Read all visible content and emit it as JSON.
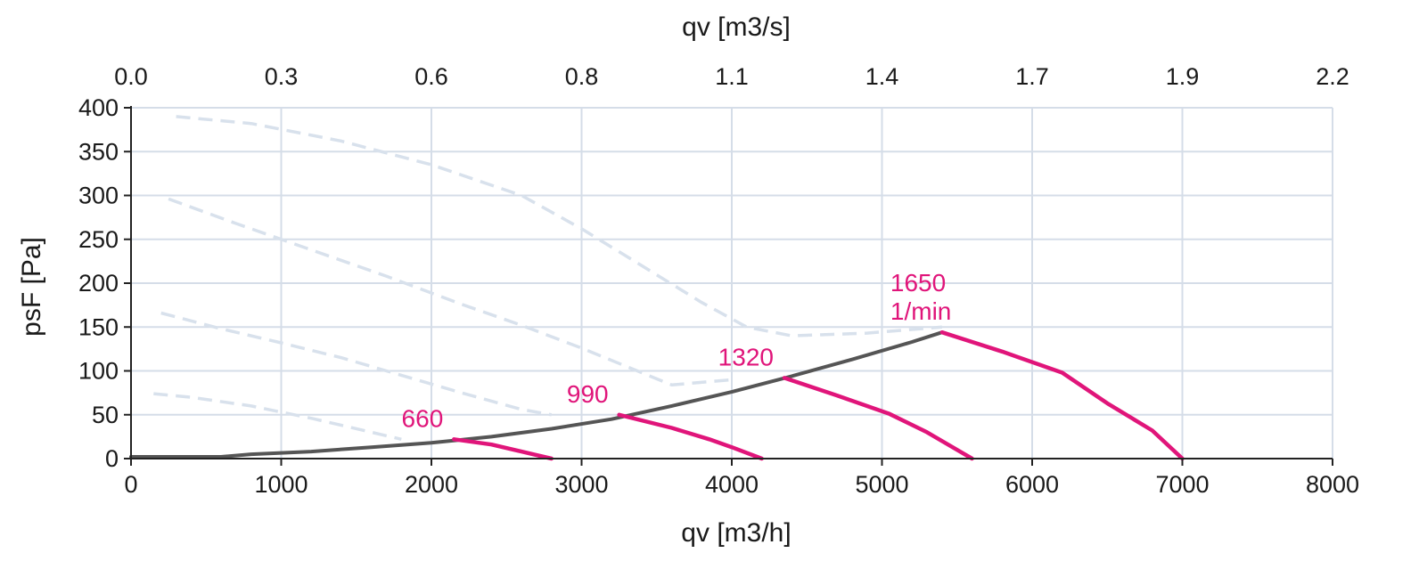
{
  "chart_data": {
    "type": "line",
    "x_label_top": "qv [m3/s]",
    "x_label_bottom": "qv [m3/h]",
    "y_label": "psF [Pa]",
    "x_range": [
      0,
      8000
    ],
    "y_range": [
      0,
      400
    ],
    "x_ticks_bottom": [
      "0",
      "1000",
      "2000",
      "3000",
      "4000",
      "5000",
      "6000",
      "7000",
      "8000"
    ],
    "x_ticks_top": [
      "0.0",
      "0.3",
      "0.6",
      "0.8",
      "1.1",
      "1.4",
      "1.7",
      "1.9",
      "2.2"
    ],
    "y_ticks": [
      "0",
      "50",
      "100",
      "150",
      "200",
      "250",
      "300",
      "350",
      "400"
    ],
    "grid": true,
    "colors": {
      "operating": "#e0157a",
      "system_curve": "#555555",
      "faded": "#d8e1ec",
      "grid": "#d5dde8"
    },
    "operating_series": [
      {
        "label": "660",
        "label_lines": [
          "660"
        ],
        "points": [
          [
            2150,
            22
          ],
          [
            2400,
            16
          ],
          [
            2600,
            8
          ],
          [
            2800,
            0
          ]
        ]
      },
      {
        "label": "990",
        "label_lines": [
          "990"
        ],
        "points": [
          [
            3250,
            50
          ],
          [
            3600,
            35
          ],
          [
            3850,
            22
          ],
          [
            4000,
            13
          ],
          [
            4200,
            0
          ]
        ]
      },
      {
        "label": "1320",
        "label_lines": [
          "1320"
        ],
        "points": [
          [
            4350,
            92
          ],
          [
            4700,
            72
          ],
          [
            5050,
            51
          ],
          [
            5300,
            30
          ],
          [
            5600,
            0
          ]
        ]
      },
      {
        "label": "1650 1/min",
        "label_lines": [
          "1650",
          "1/min"
        ],
        "points": [
          [
            5400,
            144
          ],
          [
            5800,
            122
          ],
          [
            6200,
            98
          ],
          [
            6500,
            63
          ],
          [
            6800,
            32
          ],
          [
            7000,
            0
          ]
        ]
      }
    ],
    "system_curve": [
      [
        0,
        2
      ],
      [
        600,
        2
      ],
      [
        800,
        5
      ],
      [
        1200,
        8
      ],
      [
        1600,
        13
      ],
      [
        2000,
        18
      ],
      [
        2400,
        25
      ],
      [
        2800,
        34
      ],
      [
        3200,
        45
      ],
      [
        3600,
        60
      ],
      [
        4000,
        76
      ],
      [
        4400,
        94
      ],
      [
        4800,
        113
      ],
      [
        5200,
        133
      ],
      [
        5400,
        144
      ]
    ],
    "faded_curves": [
      {
        "points": [
          [
            150,
            74
          ],
          [
            400,
            70
          ],
          [
            800,
            60
          ],
          [
            1200,
            46
          ],
          [
            1600,
            30
          ],
          [
            1800,
            22
          ]
        ]
      },
      {
        "points": [
          [
            200,
            166
          ],
          [
            600,
            148
          ],
          [
            1000,
            132
          ],
          [
            1400,
            115
          ],
          [
            1800,
            95
          ],
          [
            2200,
            75
          ],
          [
            2600,
            56
          ],
          [
            2800,
            50
          ]
        ]
      },
      {
        "points": [
          [
            250,
            296
          ],
          [
            700,
            268
          ],
          [
            1200,
            238
          ],
          [
            1700,
            208
          ],
          [
            2200,
            176
          ],
          [
            2600,
            152
          ],
          [
            3000,
            126
          ],
          [
            3300,
            105
          ],
          [
            3600,
            84
          ],
          [
            4000,
            90
          ]
        ]
      },
      {
        "points": [
          [
            300,
            390
          ],
          [
            800,
            382
          ],
          [
            1400,
            362
          ],
          [
            2000,
            335
          ],
          [
            2600,
            300
          ],
          [
            3000,
            262
          ],
          [
            3400,
            220
          ],
          [
            3800,
            178
          ],
          [
            4100,
            150
          ],
          [
            4400,
            140
          ],
          [
            4900,
            143
          ],
          [
            5400,
            150
          ]
        ]
      }
    ]
  }
}
